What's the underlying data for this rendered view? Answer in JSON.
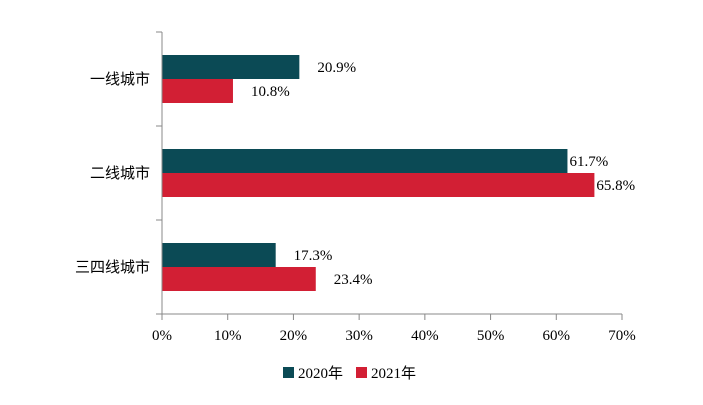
{
  "chart_data": {
    "type": "bar",
    "orientation": "horizontal",
    "categories": [
      "一线城市",
      "二线城市",
      "三四线城市"
    ],
    "series": [
      {
        "name": "2020年",
        "values": [
          20.9,
          61.7,
          17.3
        ],
        "labels": [
          "20.9%",
          "61.7%",
          "17.3%"
        ],
        "color": "#0b4a55"
      },
      {
        "name": "2021年",
        "values": [
          10.8,
          65.8,
          23.4
        ],
        "labels": [
          "10.8%",
          "65.8%",
          "23.4%"
        ],
        "color": "#d21f34"
      }
    ],
    "xlim": [
      0,
      70
    ],
    "xticks": [
      0,
      10,
      20,
      30,
      40,
      50,
      60,
      70
    ],
    "xtick_labels": [
      "0%",
      "10%",
      "20%",
      "30%",
      "40%",
      "50%",
      "60%",
      "70%"
    ],
    "grid": false,
    "legend_position": "bottom-center"
  }
}
